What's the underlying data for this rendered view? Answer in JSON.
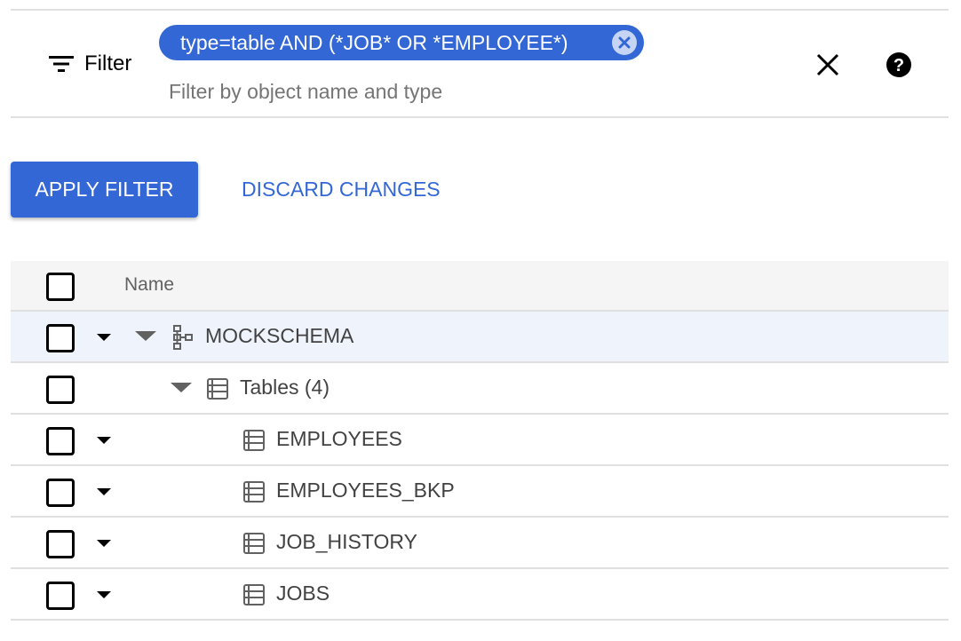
{
  "filter": {
    "label": "Filter",
    "chip_text": "type=table AND (*JOB* OR *EMPLOYEE*)",
    "placeholder": "Filter by object name and type"
  },
  "actions": {
    "apply": "APPLY FILTER",
    "discard": "DISCARD CHANGES"
  },
  "table": {
    "column_name": "Name",
    "rows": [
      {
        "label": "MOCKSCHEMA",
        "type": "schema",
        "selected_highlight": true
      },
      {
        "label": "Tables (4)",
        "type": "folder"
      },
      {
        "label": "EMPLOYEES",
        "type": "table"
      },
      {
        "label": "EMPLOYEES_BKP",
        "type": "table"
      },
      {
        "label": "JOB_HISTORY",
        "type": "table"
      },
      {
        "label": "JOBS",
        "type": "table"
      }
    ]
  },
  "colors": {
    "accent": "#3367d6",
    "row_highlight": "#eef3fc"
  }
}
